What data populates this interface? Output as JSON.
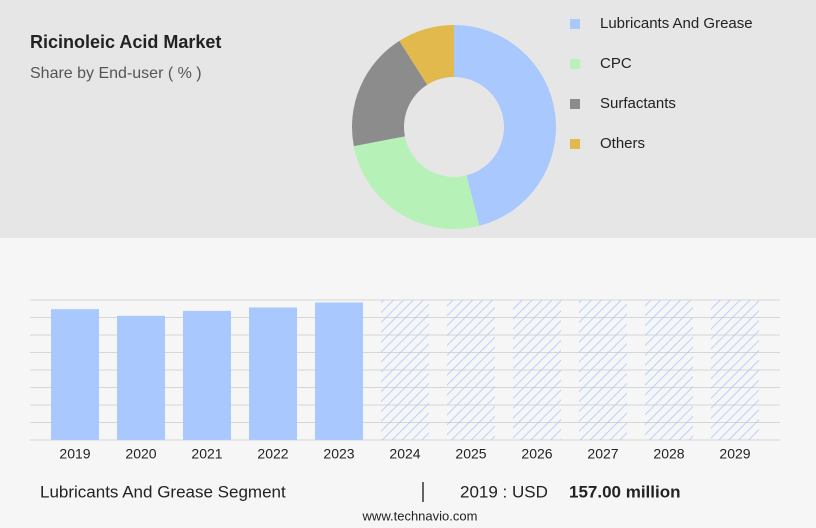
{
  "chart_data": [
    {
      "type": "donut",
      "title": "Ricinoleic Acid Market",
      "subtitle": "Share by End-user ( % )",
      "categories": [
        "Lubricants And Grease",
        "CPC",
        "Surfactants",
        "Others"
      ],
      "values": [
        46,
        26,
        19,
        9
      ],
      "colors": [
        "#a9c8fe",
        "#b6f1b8",
        "#8c8c8c",
        "#e2b94c"
      ]
    },
    {
      "type": "bar",
      "categories": [
        "2019",
        "2020",
        "2021",
        "2022",
        "2023",
        "2024",
        "2025",
        "2026",
        "2027",
        "2028",
        "2029"
      ],
      "values": [
        157,
        149,
        155,
        159,
        165,
        null,
        null,
        null,
        null,
        null,
        null
      ],
      "color": "#a9c8fe",
      "ylim": [
        0,
        168
      ],
      "yticks": [
        0,
        21,
        42,
        63,
        84,
        105,
        126,
        147,
        168
      ],
      "grid": true
    }
  ],
  "footer": {
    "segment": "Lubricants And Grease Segment",
    "highlight": "2019 : USD",
    "highlight_value": "157.00 million",
    "source": "www.technavio.com"
  }
}
